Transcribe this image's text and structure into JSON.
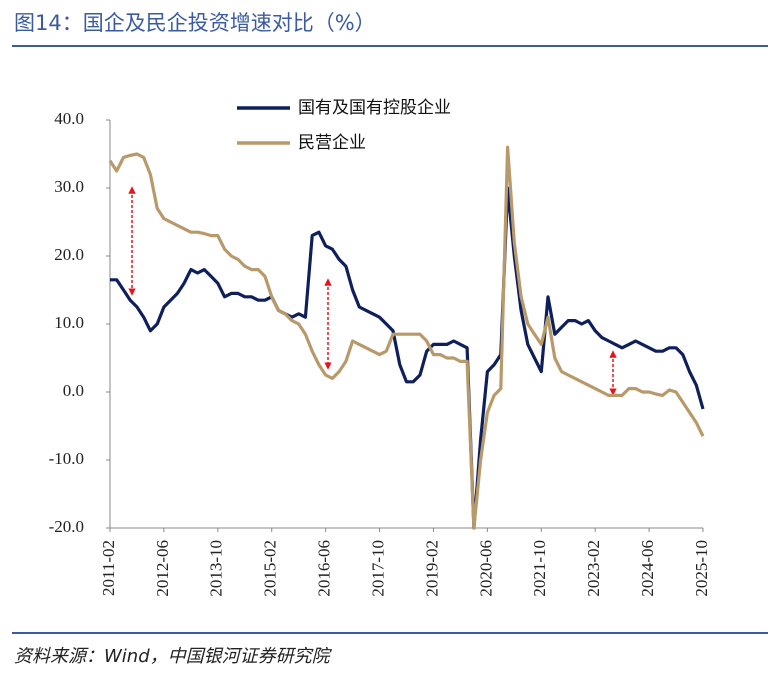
{
  "title": "图14：国企及民企投资增速对比（%）",
  "source": "资料来源：Wind，中国银河证券研究院",
  "chart_data": {
    "type": "line",
    "categories": [
      "2011-02",
      null,
      null,
      null,
      null,
      null,
      null,
      null,
      "2012-06",
      null,
      null,
      null,
      null,
      null,
      null,
      null,
      "2013-10",
      null,
      null,
      null,
      null,
      null,
      null,
      null,
      "2015-02",
      null,
      null,
      null,
      null,
      null,
      null,
      null,
      "2016-06",
      null,
      null,
      null,
      null,
      null,
      null,
      null,
      "2017-10",
      null,
      null,
      null,
      null,
      null,
      null,
      null,
      "2019-02",
      null,
      null,
      null,
      null,
      null,
      null,
      null,
      "2020-06",
      null,
      null,
      null,
      null,
      null,
      null,
      null,
      "2021-10",
      null,
      null,
      null,
      null,
      null,
      null,
      null,
      "2023-02",
      null,
      null,
      null,
      null,
      null,
      null,
      null,
      "2024-06",
      null,
      null,
      null,
      null,
      null,
      null,
      null,
      "2025-10"
    ],
    "series": [
      {
        "name": "国有及国有控股企业",
        "color": "#0f1f5c",
        "values": [
          16.5,
          16.5,
          15,
          13.5,
          12.5,
          11,
          9,
          10,
          12.5,
          13.5,
          14.5,
          16,
          18,
          17.5,
          18,
          17,
          16,
          14,
          14.5,
          14.5,
          14,
          14,
          13.5,
          13.5,
          14,
          12,
          11.5,
          11,
          11.5,
          11,
          23,
          23.5,
          21.5,
          21,
          19.5,
          18.5,
          15,
          12.5,
          12,
          11.5,
          11,
          10,
          9,
          4,
          1.5,
          1.5,
          2.5,
          6,
          7,
          7,
          7,
          7.5,
          7,
          6.5,
          -20,
          -7,
          3,
          4,
          5.5,
          30,
          20,
          12,
          7,
          5,
          3,
          14,
          8.5,
          9.5,
          10.5,
          10.5,
          10,
          10.5,
          9,
          8,
          7.5,
          7,
          6.5,
          7,
          7.5,
          7,
          6.5,
          6,
          6,
          6.5,
          6.5,
          5.5,
          3,
          1,
          -2.5
        ]
      },
      {
        "name": "民营企业",
        "color": "#b8996a",
        "values": [
          34,
          32.5,
          34.5,
          34.8,
          35,
          34.5,
          32,
          27,
          25.5,
          25,
          24.5,
          24,
          23.5,
          23.5,
          23.3,
          23,
          23,
          21,
          20,
          19.5,
          18.5,
          18,
          18,
          17,
          14,
          12,
          11.5,
          10.5,
          10,
          8.5,
          6,
          4,
          2.5,
          2,
          3,
          4.5,
          7.5,
          7,
          6.5,
          6,
          5.5,
          6,
          8.5,
          8.5,
          8.5,
          8.5,
          8.5,
          7.5,
          5.5,
          5.5,
          5,
          5,
          4.5,
          4.5,
          -20,
          -10,
          -3,
          -0.5,
          0.5,
          36,
          22,
          14,
          10,
          8.5,
          7,
          11,
          5,
          3,
          2.5,
          2,
          1.5,
          1,
          0.5,
          0,
          -0.5,
          -0.5,
          -0.5,
          0.5,
          0.5,
          0,
          0,
          -0.3,
          -0.5,
          0.3,
          0,
          -1.5,
          -3,
          -4.5,
          -6.5
        ]
      }
    ],
    "ylim": [
      -20,
      40
    ],
    "yticks": [
      {
        "value": -20,
        "label": "-20.0"
      },
      {
        "value": -10,
        "label": "-10.0"
      },
      {
        "value": 0,
        "label": "0.0"
      },
      {
        "value": 10,
        "label": "10.0"
      },
      {
        "value": 20,
        "label": "20.0"
      },
      {
        "value": 30,
        "label": "30.0"
      },
      {
        "value": 40,
        "label": "40.0"
      }
    ],
    "grid": false
  }
}
